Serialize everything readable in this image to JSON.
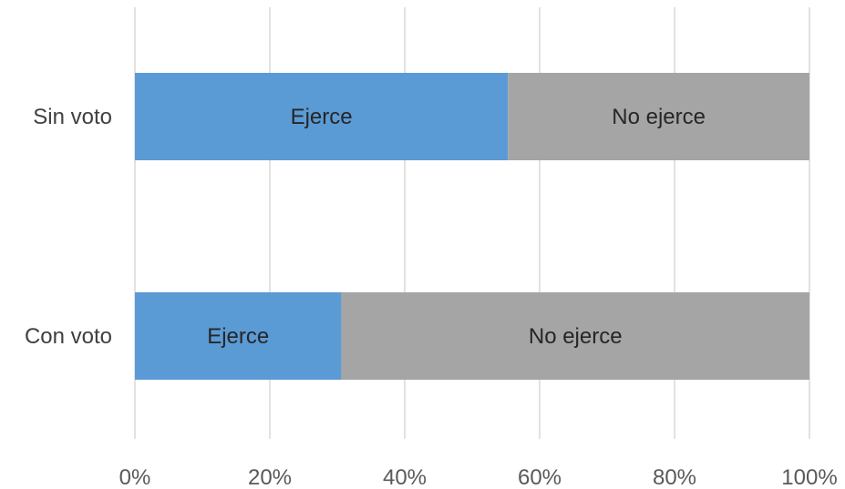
{
  "chart_data": {
    "type": "bar",
    "orientation": "horizontal",
    "stacked": true,
    "percent_stacked": true,
    "categories": [
      "Sin voto",
      "Con voto"
    ],
    "series": [
      {
        "label": "Ejerce",
        "color": "#5b9bd5",
        "values": [
          55.3,
          30.6
        ]
      },
      {
        "label": "No ejerce",
        "color": "#a5a5a5",
        "values": [
          44.7,
          69.4
        ]
      }
    ],
    "xlim": [
      0,
      100
    ],
    "x_ticks": [
      "0%",
      "20%",
      "40%",
      "60%",
      "80%",
      "100%"
    ],
    "grid": true,
    "legend": "none"
  }
}
